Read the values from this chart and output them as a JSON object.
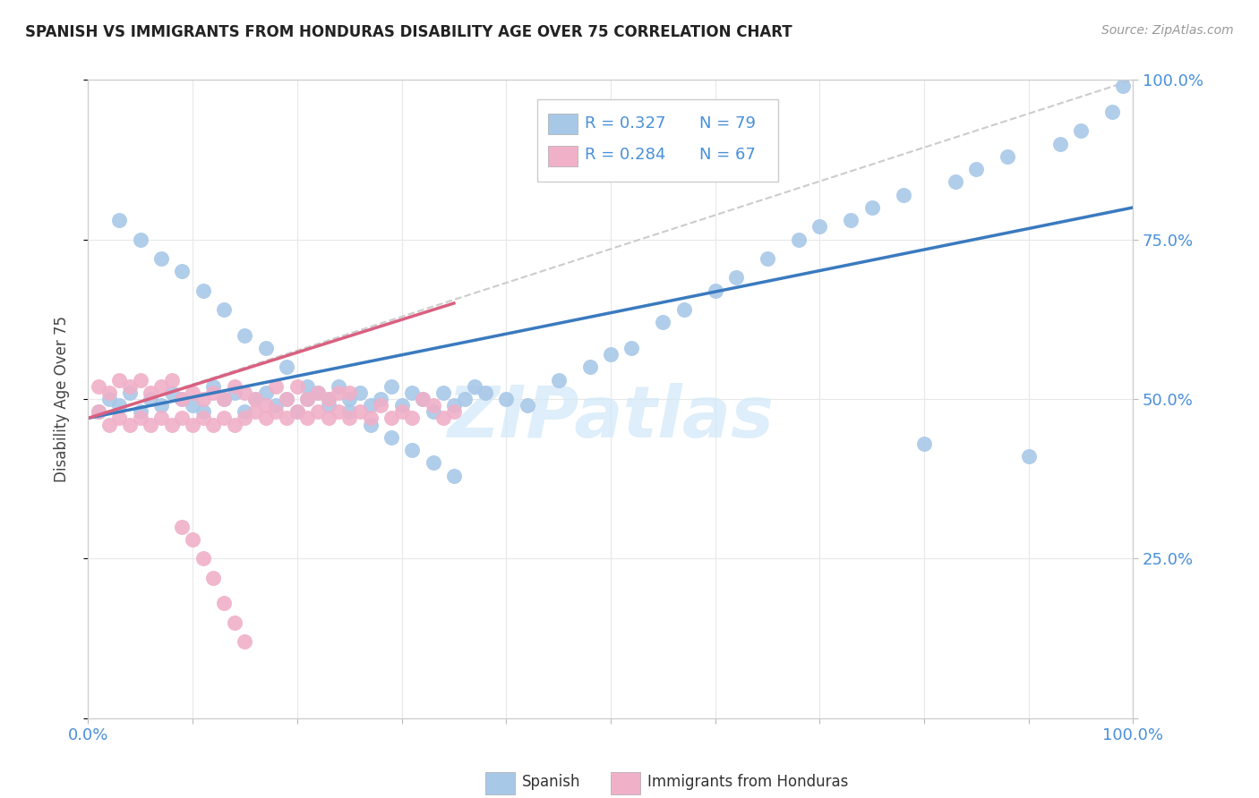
{
  "title": "SPANISH VS IMMIGRANTS FROM HONDURAS DISABILITY AGE OVER 75 CORRELATION CHART",
  "source": "Source: ZipAtlas.com",
  "ylabel": "Disability Age Over 75",
  "xlim": [
    0,
    100
  ],
  "ylim": [
    0,
    100
  ],
  "blue_color": "#a8c8e8",
  "pink_color": "#f0b0c8",
  "blue_line_color": "#3a7abf",
  "pink_line_color": "#d96080",
  "dashed_color": "#cccccc",
  "watermark_color": "#d0e8f8",
  "grid_color": "#e8e8e8",
  "blue_trend_x0": 0,
  "blue_trend_y0": 47,
  "blue_trend_x1": 100,
  "blue_trend_y1": 80,
  "pink_trend_x0": 0,
  "pink_trend_y0": 47,
  "pink_trend_x1": 35,
  "pink_trend_y1": 65,
  "dash_x0": 0,
  "dash_y0": 47,
  "dash_x1": 100,
  "dash_y1": 100,
  "blue_x": [
    1,
    2,
    3,
    4,
    5,
    6,
    7,
    8,
    9,
    10,
    11,
    12,
    13,
    14,
    15,
    16,
    17,
    18,
    19,
    20,
    21,
    22,
    23,
    24,
    25,
    26,
    27,
    28,
    29,
    30,
    31,
    32,
    33,
    34,
    35,
    36,
    37,
    38,
    40,
    42,
    45,
    48,
    50,
    52,
    55,
    57,
    60,
    62,
    65,
    68,
    70,
    73,
    75,
    78,
    80,
    83,
    85,
    88,
    90,
    93,
    95,
    98,
    99,
    3,
    5,
    7,
    9,
    11,
    13,
    15,
    17,
    19,
    21,
    23,
    25,
    27,
    29,
    31,
    33,
    35
  ],
  "blue_y": [
    48,
    50,
    49,
    51,
    48,
    50,
    49,
    51,
    50,
    49,
    48,
    52,
    50,
    51,
    48,
    50,
    51,
    49,
    50,
    48,
    50,
    51,
    49,
    52,
    50,
    51,
    49,
    50,
    52,
    49,
    51,
    50,
    48,
    51,
    49,
    50,
    52,
    51,
    50,
    49,
    53,
    55,
    57,
    58,
    62,
    64,
    67,
    69,
    72,
    75,
    77,
    78,
    80,
    82,
    43,
    84,
    86,
    88,
    41,
    90,
    92,
    95,
    99,
    78,
    75,
    72,
    70,
    67,
    64,
    60,
    58,
    55,
    52,
    50,
    48,
    46,
    44,
    42,
    40,
    38
  ],
  "pink_x": [
    1,
    1,
    2,
    2,
    3,
    3,
    4,
    4,
    5,
    5,
    6,
    6,
    7,
    7,
    8,
    8,
    9,
    9,
    10,
    10,
    11,
    11,
    12,
    12,
    13,
    13,
    14,
    14,
    15,
    15,
    16,
    16,
    17,
    17,
    18,
    18,
    19,
    19,
    20,
    20,
    21,
    21,
    22,
    22,
    23,
    23,
    24,
    24,
    25,
    25,
    26,
    27,
    28,
    29,
    30,
    31,
    32,
    33,
    34,
    35,
    9,
    10,
    11,
    12,
    13,
    14,
    15
  ],
  "pink_y": [
    48,
    52,
    46,
    51,
    47,
    53,
    46,
    52,
    47,
    53,
    46,
    51,
    47,
    52,
    46,
    53,
    47,
    50,
    46,
    51,
    47,
    50,
    46,
    51,
    47,
    50,
    46,
    52,
    47,
    51,
    48,
    50,
    47,
    49,
    48,
    52,
    47,
    50,
    48,
    52,
    47,
    50,
    48,
    51,
    47,
    50,
    48,
    51,
    47,
    51,
    48,
    47,
    49,
    47,
    48,
    47,
    50,
    49,
    47,
    48,
    30,
    28,
    25,
    22,
    18,
    15,
    12
  ]
}
